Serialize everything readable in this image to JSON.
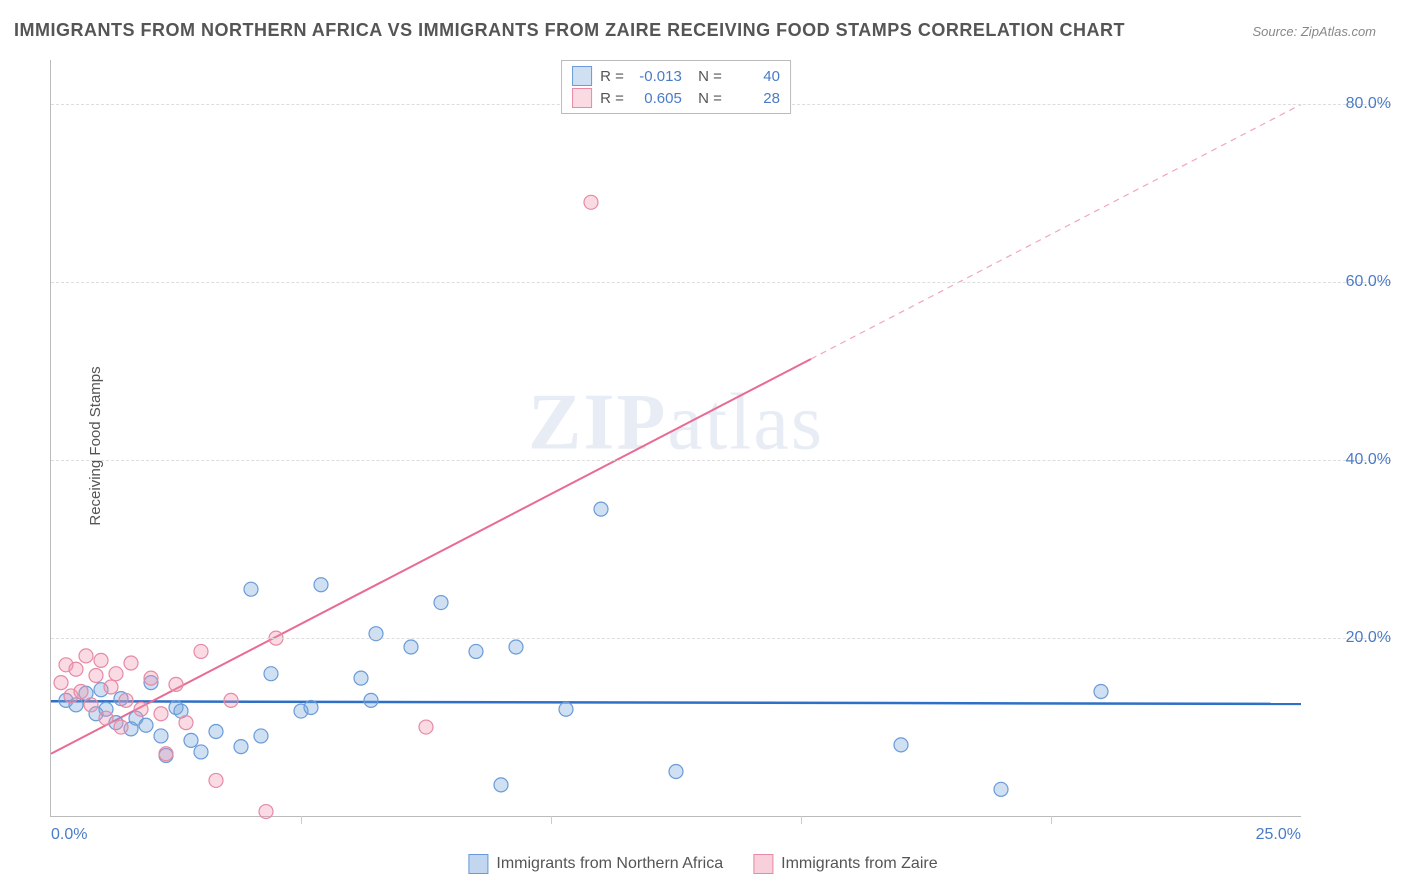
{
  "title": "IMMIGRANTS FROM NORTHERN AFRICA VS IMMIGRANTS FROM ZAIRE RECEIVING FOOD STAMPS CORRELATION CHART",
  "source": "Source: ZipAtlas.com",
  "y_axis_label": "Receiving Food Stamps",
  "watermark": "ZIPatlas",
  "chart": {
    "type": "scatter",
    "xlim": [
      0,
      25
    ],
    "ylim": [
      0,
      85
    ],
    "x_ticks": [
      0,
      5,
      10,
      15,
      20,
      25
    ],
    "x_tick_labels": [
      "0.0%",
      "",
      "",
      "",
      "",
      "25.0%"
    ],
    "y_ticks": [
      20,
      40,
      60,
      80
    ],
    "y_tick_labels": [
      "20.0%",
      "40.0%",
      "60.0%",
      "80.0%"
    ],
    "background_color": "#ffffff",
    "grid_color": "#dddddd",
    "axis_color": "#bbbbbb",
    "tick_label_color": "#4a7bc8",
    "marker_radius": 7,
    "series": [
      {
        "name": "Immigrants from Northern Africa",
        "color_fill": "rgba(120,165,220,0.35)",
        "color_stroke": "#6a9bd8",
        "R": "-0.013",
        "N": "40",
        "trend": {
          "x1": 0,
          "y1": 12.9,
          "x2": 25,
          "y2": 12.6,
          "color": "#2f6fc5",
          "width": 2.5,
          "dash": ""
        },
        "points": [
          [
            0.3,
            13.0
          ],
          [
            0.5,
            12.5
          ],
          [
            0.7,
            13.8
          ],
          [
            0.9,
            11.5
          ],
          [
            1.0,
            14.2
          ],
          [
            1.1,
            12.0
          ],
          [
            1.3,
            10.5
          ],
          [
            1.4,
            13.2
          ],
          [
            1.6,
            9.8
          ],
          [
            1.7,
            11.0
          ],
          [
            1.9,
            10.2
          ],
          [
            2.0,
            15.0
          ],
          [
            2.2,
            9.0
          ],
          [
            2.3,
            6.8
          ],
          [
            2.5,
            12.2
          ],
          [
            2.6,
            11.8
          ],
          [
            2.8,
            8.5
          ],
          [
            3.0,
            7.2
          ],
          [
            3.3,
            9.5
          ],
          [
            3.8,
            7.8
          ],
          [
            4.0,
            25.5
          ],
          [
            4.2,
            9.0
          ],
          [
            4.4,
            16.0
          ],
          [
            5.0,
            11.8
          ],
          [
            5.2,
            12.2
          ],
          [
            5.4,
            26.0
          ],
          [
            6.2,
            15.5
          ],
          [
            6.4,
            13.0
          ],
          [
            6.5,
            20.5
          ],
          [
            7.2,
            19.0
          ],
          [
            7.8,
            24.0
          ],
          [
            8.5,
            18.5
          ],
          [
            9.0,
            3.5
          ],
          [
            9.3,
            19.0
          ],
          [
            11.0,
            34.5
          ],
          [
            12.5,
            5.0
          ],
          [
            17.0,
            8.0
          ],
          [
            19.0,
            3.0
          ],
          [
            21.0,
            14.0
          ],
          [
            10.3,
            12.0
          ]
        ]
      },
      {
        "name": "Immigrants from Zaire",
        "color_fill": "rgba(240,150,175,0.35)",
        "color_stroke": "#e68aa5",
        "R": "0.605",
        "N": "28",
        "trend": {
          "x1": 0,
          "y1": 7.0,
          "x2": 25,
          "y2": 80.0,
          "solid_until_x": 15.2,
          "color": "#e86b93",
          "width": 2,
          "dash": "6 5"
        },
        "points": [
          [
            0.2,
            15.0
          ],
          [
            0.3,
            17.0
          ],
          [
            0.4,
            13.5
          ],
          [
            0.5,
            16.5
          ],
          [
            0.6,
            14.0
          ],
          [
            0.7,
            18.0
          ],
          [
            0.8,
            12.5
          ],
          [
            0.9,
            15.8
          ],
          [
            1.0,
            17.5
          ],
          [
            1.1,
            11.0
          ],
          [
            1.2,
            14.5
          ],
          [
            1.3,
            16.0
          ],
          [
            1.4,
            10.0
          ],
          [
            1.5,
            13.0
          ],
          [
            1.6,
            17.2
          ],
          [
            1.8,
            12.0
          ],
          [
            2.0,
            15.5
          ],
          [
            2.2,
            11.5
          ],
          [
            2.3,
            7.0
          ],
          [
            2.5,
            14.8
          ],
          [
            2.7,
            10.5
          ],
          [
            3.0,
            18.5
          ],
          [
            3.3,
            4.0
          ],
          [
            3.6,
            13.0
          ],
          [
            4.3,
            0.5
          ],
          [
            4.5,
            20.0
          ],
          [
            7.5,
            10.0
          ],
          [
            10.8,
            69.0
          ]
        ]
      }
    ]
  },
  "legend_bottom": [
    {
      "label": "Immigrants from Northern Africa",
      "fill": "rgba(120,165,220,0.45)",
      "stroke": "#6a9bd8"
    },
    {
      "label": "Immigrants from Zaire",
      "fill": "rgba(240,150,175,0.45)",
      "stroke": "#e68aa5"
    }
  ]
}
